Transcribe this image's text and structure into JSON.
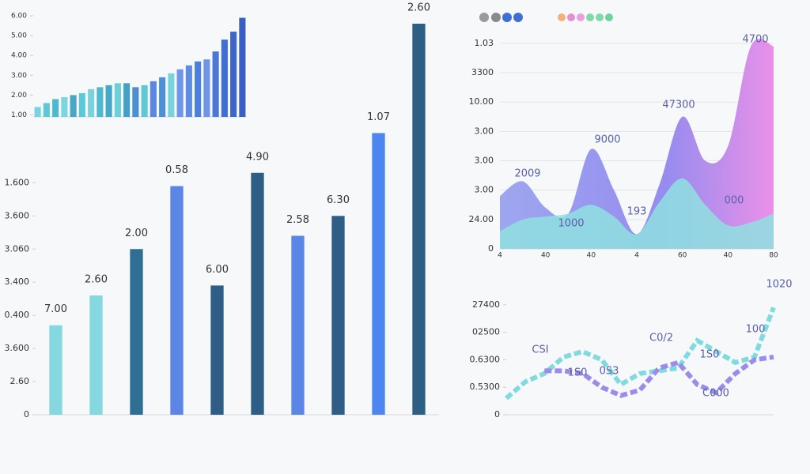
{
  "chart_data": [
    {
      "type": "bar",
      "values": [
        1.4,
        1.6,
        1.8,
        1.9,
        2.0,
        2.1,
        2.3,
        2.4,
        2.5,
        2.6,
        2.6,
        2.4,
        2.5,
        2.7,
        2.9,
        3.1,
        3.3,
        3.5,
        3.7,
        3.8,
        4.2,
        4.8,
        5.2,
        5.9
      ],
      "colors": [
        "#79d3dc",
        "#5fc8d6",
        "#4fb9cf",
        "#7dd5de",
        "#4aa6c6",
        "#5fc8d6",
        "#79d3dc",
        "#4fb9cf",
        "#45a8c9",
        "#6bd0da",
        "#46a0c4",
        "#4b8fcf",
        "#5fc8d6",
        "#5b86e5",
        "#4d8fd9",
        "#79d3dc",
        "#6f95e8",
        "#5d8ce6",
        "#4c7fdc",
        "#6f95e8",
        "#4b77d6",
        "#3f6fd1",
        "#3d66c9",
        "#3a5fc4"
      ],
      "ylim": [
        0.9,
        6.2
      ],
      "yticks": [
        {
          "value": 1,
          "label": "1.00"
        },
        {
          "value": 2,
          "label": "2.00"
        },
        {
          "value": 3,
          "label": "3.00"
        },
        {
          "value": 4,
          "label": "4.00"
        },
        {
          "value": 5,
          "label": "5.00"
        },
        {
          "value": 6,
          "label": "6.00"
        }
      ],
      "grid": false
    },
    {
      "type": "bar",
      "values": [
        2.7,
        3.6,
        5.0,
        6.9,
        3.9,
        7.3,
        5.4,
        6.0,
        8.5,
        11.8
      ],
      "colors": [
        "#86d8e0",
        "#86d8e0",
        "#2f6f94",
        "#5b86e5",
        "#2e5e86",
        "#2e5e86",
        "#5b86e5",
        "#2e5e86",
        "#4d86ef",
        "#2d5f85"
      ],
      "annotations": [
        "7.00",
        "2.60",
        "2.00",
        "0.58",
        "6.00",
        "4.90",
        "2.58",
        "6.30",
        "1.07",
        "2.60"
      ],
      "ylim": [
        0,
        11.8
      ],
      "yticks": [
        0,
        {
          "value": 1,
          "label": "2.60"
        },
        {
          "value": 2,
          "label": "3.600"
        },
        {
          "value": 3,
          "label": "0.400"
        },
        {
          "value": 4,
          "label": "3.400"
        },
        {
          "value": 5,
          "label": "3.060"
        },
        {
          "value": 6,
          "label": "3.600"
        },
        {
          "value": 7,
          "label": "1.600"
        }
      ],
      "grid": false
    },
    {
      "type": "area",
      "categories": [
        "4",
        null,
        "40",
        null,
        "40",
        null,
        "4",
        null,
        "60",
        null,
        "40",
        null,
        "80"
      ],
      "series": [
        {
          "color": "#9a86ee",
          "values": [
            1.8,
            2.3,
            1.4,
            1.2,
            3.4,
            2.0,
            0.5,
            2.2,
            4.5,
            3.0,
            3.5,
            6.9,
            6.9
          ]
        },
        {
          "color": "#8fe0e0",
          "values": [
            0.6,
            1.0,
            1.1,
            1.2,
            1.5,
            1.1,
            0.5,
            1.6,
            2.4,
            1.5,
            0.8,
            0.9,
            1.2
          ]
        }
      ],
      "annotations": [
        "2009",
        "1000",
        "9000",
        "193",
        "47300",
        "000",
        "4700"
      ],
      "ylim": [
        0,
        7.4
      ],
      "yticks": [
        0,
        {
          "value": 1,
          "label": "24.00"
        },
        {
          "value": 2,
          "label": "3.00"
        },
        {
          "value": 3,
          "label": "3.00"
        },
        {
          "value": 4,
          "label": "3.00"
        },
        {
          "value": 5,
          "label": "10.00"
        },
        {
          "value": 6,
          "label": "3300"
        },
        {
          "value": 7,
          "label": "1.03"
        }
      ],
      "grid": true
    },
    {
      "type": "line",
      "series": [
        {
          "color": "#7fdbe0",
          "values": [
            0.6,
            1.2,
            1.5,
            2.1,
            2.3,
            2.0,
            1.1,
            1.5,
            1.6,
            1.7,
            2.7,
            2.3,
            1.9,
            2.1,
            3.9
          ]
        },
        {
          "color": "#9b8cec",
          "values": [
            null,
            null,
            1.6,
            1.6,
            1.5,
            1.0,
            0.7,
            0.9,
            1.7,
            1.9,
            1.1,
            0.8,
            1.5,
            2.0,
            2.1
          ]
        }
      ],
      "annotations": [
        "CSI",
        "1S0",
        "0S3",
        "C0/2",
        "1S0",
        "C000",
        "100",
        "1020"
      ],
      "ylim": [
        0,
        4.6
      ],
      "yticks": [
        0,
        {
          "value": 1,
          "label": "0.5300"
        },
        {
          "value": 2,
          "label": "0.6300"
        },
        {
          "value": 3,
          "label": "02500"
        },
        {
          "value": 4,
          "label": "27400"
        }
      ],
      "grid": false
    }
  ]
}
